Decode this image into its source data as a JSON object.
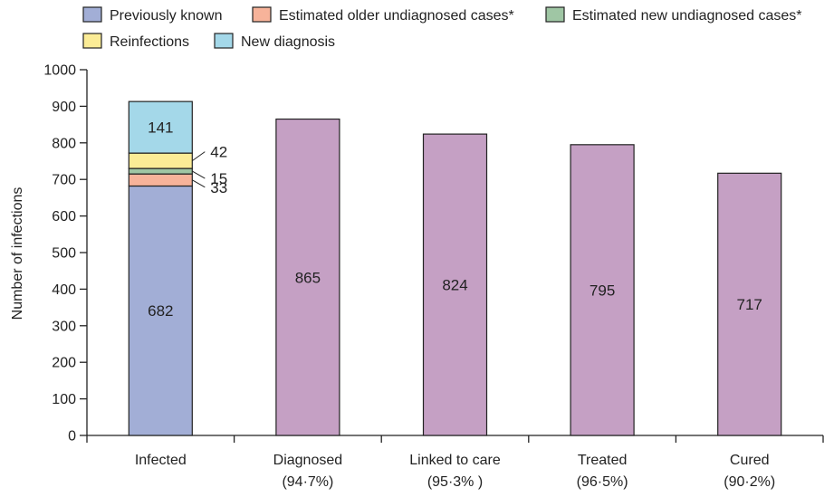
{
  "chart_data": {
    "type": "bar",
    "title": "",
    "xlabel": "",
    "ylabel": "Number of infections",
    "ylim": [
      0,
      1000
    ],
    "yticks": [
      0,
      100,
      200,
      300,
      400,
      500,
      600,
      700,
      800,
      900,
      1000
    ],
    "grid": false,
    "legend_position": "top",
    "categories": [
      {
        "label": "Infected",
        "sublabel": ""
      },
      {
        "label": "Diagnosed",
        "sublabel": "(94·7%)"
      },
      {
        "label": "Linked to care",
        "sublabel": "(95·3% )"
      },
      {
        "label": "Treated",
        "sublabel": "(96·5%)"
      },
      {
        "label": "Cured",
        "sublabel": "(90·2%)"
      }
    ],
    "stacked": {
      "category": "Infected",
      "segments": [
        {
          "name": "Previously known",
          "value": 682,
          "color": "#a2aed6",
          "label": "682"
        },
        {
          "name": "Estimated older undiagnosed cases*",
          "value": 33,
          "color": "#f7b39a",
          "label": "33"
        },
        {
          "name": "Estimated new undiagnosed cases*",
          "value": 15,
          "color": "#9fc6a4",
          "label": "15"
        },
        {
          "name": "Reinfections",
          "value": 42,
          "color": "#fbec96",
          "label": "42"
        },
        {
          "name": "New diagnosis",
          "value": 141,
          "color": "#a4d8e9",
          "label": "141"
        }
      ]
    },
    "bars": [
      {
        "category": "Diagnosed",
        "value": 865,
        "label": "865"
      },
      {
        "category": "Linked to care",
        "value": 824,
        "label": "824"
      },
      {
        "category": "Treated",
        "value": 795,
        "label": "795"
      },
      {
        "category": "Cured",
        "value": 717,
        "label": "717"
      }
    ],
    "bar_color": "#c5a0c4",
    "legend": [
      {
        "name": "Previously known",
        "color": "#a2aed6"
      },
      {
        "name": "Estimated older undiagnosed cases*",
        "color": "#f7b39a"
      },
      {
        "name": "Estimated new undiagnosed cases*",
        "color": "#9fc6a4"
      },
      {
        "name": "Reinfections",
        "color": "#fbec96"
      },
      {
        "name": "New diagnosis",
        "color": "#a4d8e9"
      }
    ]
  }
}
